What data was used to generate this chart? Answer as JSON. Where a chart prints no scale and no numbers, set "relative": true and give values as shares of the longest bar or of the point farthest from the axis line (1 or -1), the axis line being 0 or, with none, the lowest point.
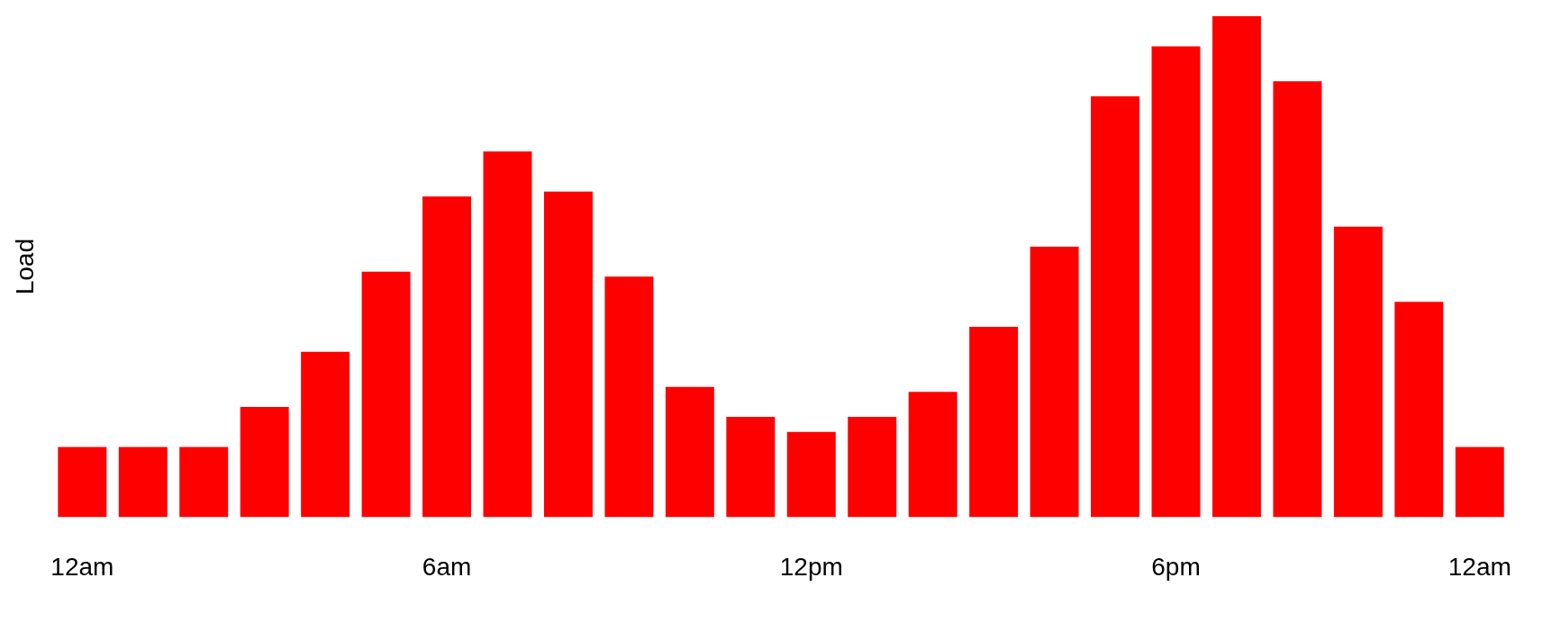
{
  "chart_data": {
    "type": "bar",
    "ylabel": "Load",
    "relative": true,
    "grid": false,
    "legend": false,
    "categories": [
      "12am",
      null,
      null,
      null,
      null,
      null,
      "6am",
      null,
      null,
      null,
      null,
      null,
      "12pm",
      null,
      null,
      null,
      null,
      null,
      "6pm",
      null,
      null,
      null,
      null,
      "12am"
    ],
    "series": [
      {
        "color": "#ff0000",
        "values": [
          0.14,
          0.14,
          0.14,
          0.22,
          0.33,
          0.49,
          0.64,
          0.73,
          0.65,
          0.48,
          0.26,
          0.2,
          0.17,
          0.2,
          0.25,
          0.38,
          0.54,
          0.84,
          0.94,
          1,
          0.87,
          0.58,
          0.43,
          0.14
        ]
      }
    ]
  }
}
